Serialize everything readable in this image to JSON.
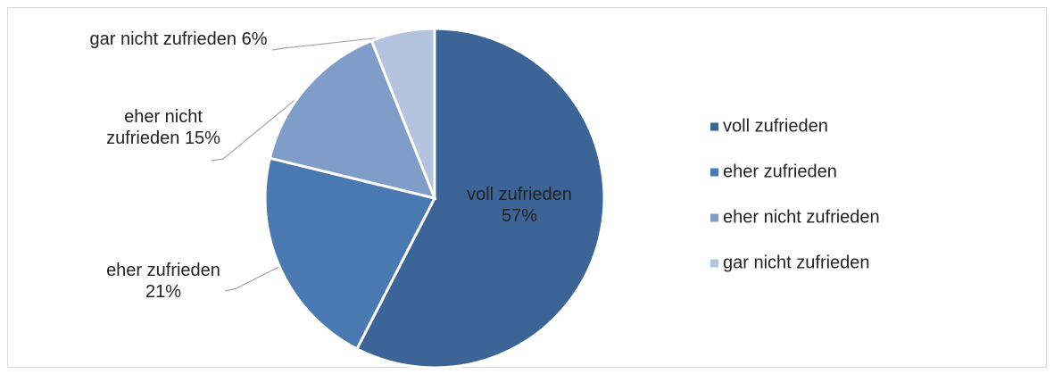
{
  "chart_data": {
    "type": "pie",
    "categories": [
      "voll zufrieden",
      "eher zufrieden",
      "eher nicht zufrieden",
      "gar nicht zufrieden"
    ],
    "values": [
      57,
      21,
      15,
      6
    ],
    "value_labels": [
      "57%",
      "21%",
      "15%",
      "6%"
    ],
    "colors": [
      "#3d6496",
      "#4a78b0",
      "#7f9dc8",
      "#b4c4de"
    ],
    "legend": "right"
  }
}
